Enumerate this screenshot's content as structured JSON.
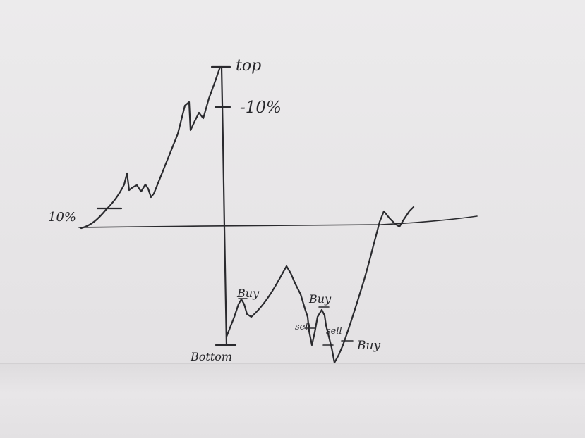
{
  "labels": {
    "top": "top",
    "minus10": "-10%",
    "ten_percent": "10%",
    "bottom": "Bottom",
    "buy_1": "Buy",
    "buy_2": "Buy",
    "buy_3": "Buy",
    "sell_1": "sell",
    "sell_2": "sell"
  },
  "colors": {
    "paper": "#e9e7e8",
    "ink": "#2a2a2e"
  }
}
